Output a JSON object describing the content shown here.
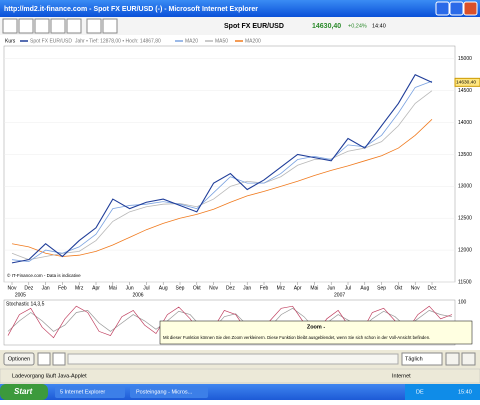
{
  "window": {
    "title": "http://md2.it-finance.com - Spot FX EUR/USD (-) - Microsoft Internet Explorer",
    "status": "Ladevorgang läuft Java-Applet",
    "zone": "Internet"
  },
  "toolbar": {
    "instrument": "Spot FX EUR/USD",
    "change": "+0,24%",
    "time": "14:40"
  },
  "legend": {
    "kurs": "Kurs",
    "range": "Jahr • Tief: 12878,00 • Hoch: 14867,80"
  },
  "chart": {
    "type": "line",
    "categories": [
      "Nov",
      "Dez",
      "Jan",
      "Feb",
      "Mrz",
      "Apr",
      "Mai",
      "Jun",
      "Jul",
      "Aug",
      "Sep",
      "Okt",
      "Nov",
      "Dez",
      "Jan",
      "Feb",
      "Mrz",
      "Apr",
      "Mai",
      "Jun",
      "Jul",
      "Aug",
      "Sep",
      "Okt",
      "Nov",
      "Dez"
    ],
    "years": [
      "2005",
      "2006",
      "2007"
    ],
    "series": [
      {
        "name": "Spot FX EUR/USD",
        "color": "#1f3d99",
        "values": [
          11800,
          11850,
          12100,
          11900,
          12150,
          12350,
          12800,
          12650,
          12750,
          12800,
          12700,
          12600,
          13050,
          13200,
          12950,
          13100,
          13300,
          13500,
          13450,
          13400,
          13750,
          13600,
          13950,
          14300,
          14750,
          14630
        ]
      },
      {
        "name": "MA20",
        "color": "#7aa2e0",
        "values": [
          11850,
          11820,
          12000,
          11950,
          12050,
          12250,
          12650,
          12700,
          12720,
          12760,
          12720,
          12650,
          12900,
          13150,
          13050,
          13050,
          13200,
          13420,
          13470,
          13420,
          13650,
          13620,
          13800,
          14150,
          14550,
          14650
        ]
      },
      {
        "name": "MA50",
        "color": "#b8b8b8",
        "values": [
          11950,
          11850,
          11900,
          11950,
          11980,
          12150,
          12450,
          12600,
          12680,
          12720,
          12730,
          12680,
          12800,
          13000,
          13080,
          13050,
          13150,
          13330,
          13420,
          13430,
          13550,
          13600,
          13700,
          13950,
          14300,
          14500
        ]
      },
      {
        "name": "MA200",
        "color": "#f07a1e",
        "values": [
          12100,
          12050,
          11950,
          11900,
          11920,
          11980,
          12080,
          12200,
          12320,
          12420,
          12500,
          12560,
          12640,
          12750,
          12850,
          12920,
          13000,
          13080,
          13170,
          13250,
          13320,
          13400,
          13480,
          13600,
          13800,
          14050
        ]
      }
    ],
    "ylim": [
      11500,
      15200
    ],
    "yticks": [
      11500,
      12000,
      12500,
      13000,
      13500,
      14000,
      14500,
      15000
    ],
    "price": {
      "value": 14630.4,
      "label": "14630,40"
    },
    "copyright": "© IT-Finance.com - Data is indicative"
  },
  "stochastic": {
    "label": "Stochastic 14,3,5",
    "ylim": [
      0,
      100
    ],
    "yticks": [
      100
    ],
    "k": [
      20,
      70,
      85,
      40,
      15,
      60,
      90,
      75,
      30,
      20,
      65,
      80,
      45,
      25,
      70,
      88,
      60,
      20,
      35,
      80,
      70,
      30,
      15,
      55,
      85,
      90,
      50,
      20,
      60,
      80,
      40,
      25,
      75,
      85,
      55,
      30,
      70,
      90,
      60,
      70
    ],
    "d": [
      30,
      55,
      75,
      55,
      30,
      45,
      75,
      80,
      50,
      30,
      50,
      70,
      55,
      35,
      55,
      78,
      70,
      40,
      35,
      65,
      72,
      45,
      25,
      40,
      70,
      85,
      65,
      35,
      50,
      70,
      55,
      35,
      60,
      78,
      65,
      40,
      60,
      80,
      70,
      65
    ]
  },
  "tooltip": {
    "title": "Zoom -",
    "text": "Mit dieser Funktion können Sie den Zoom verkleinern. Diese Funktion bleibt ausgeblendet, wenn Sie sich schon in der Voll-Ansicht befinden."
  },
  "controls": {
    "options": "Optionen",
    "interval": "Täglich"
  },
  "taskbar": {
    "start": "Start",
    "ie": "5 Internet Explorer",
    "mail": "Posteingang - Micros...",
    "lang": "DE",
    "clock": "15:40"
  }
}
